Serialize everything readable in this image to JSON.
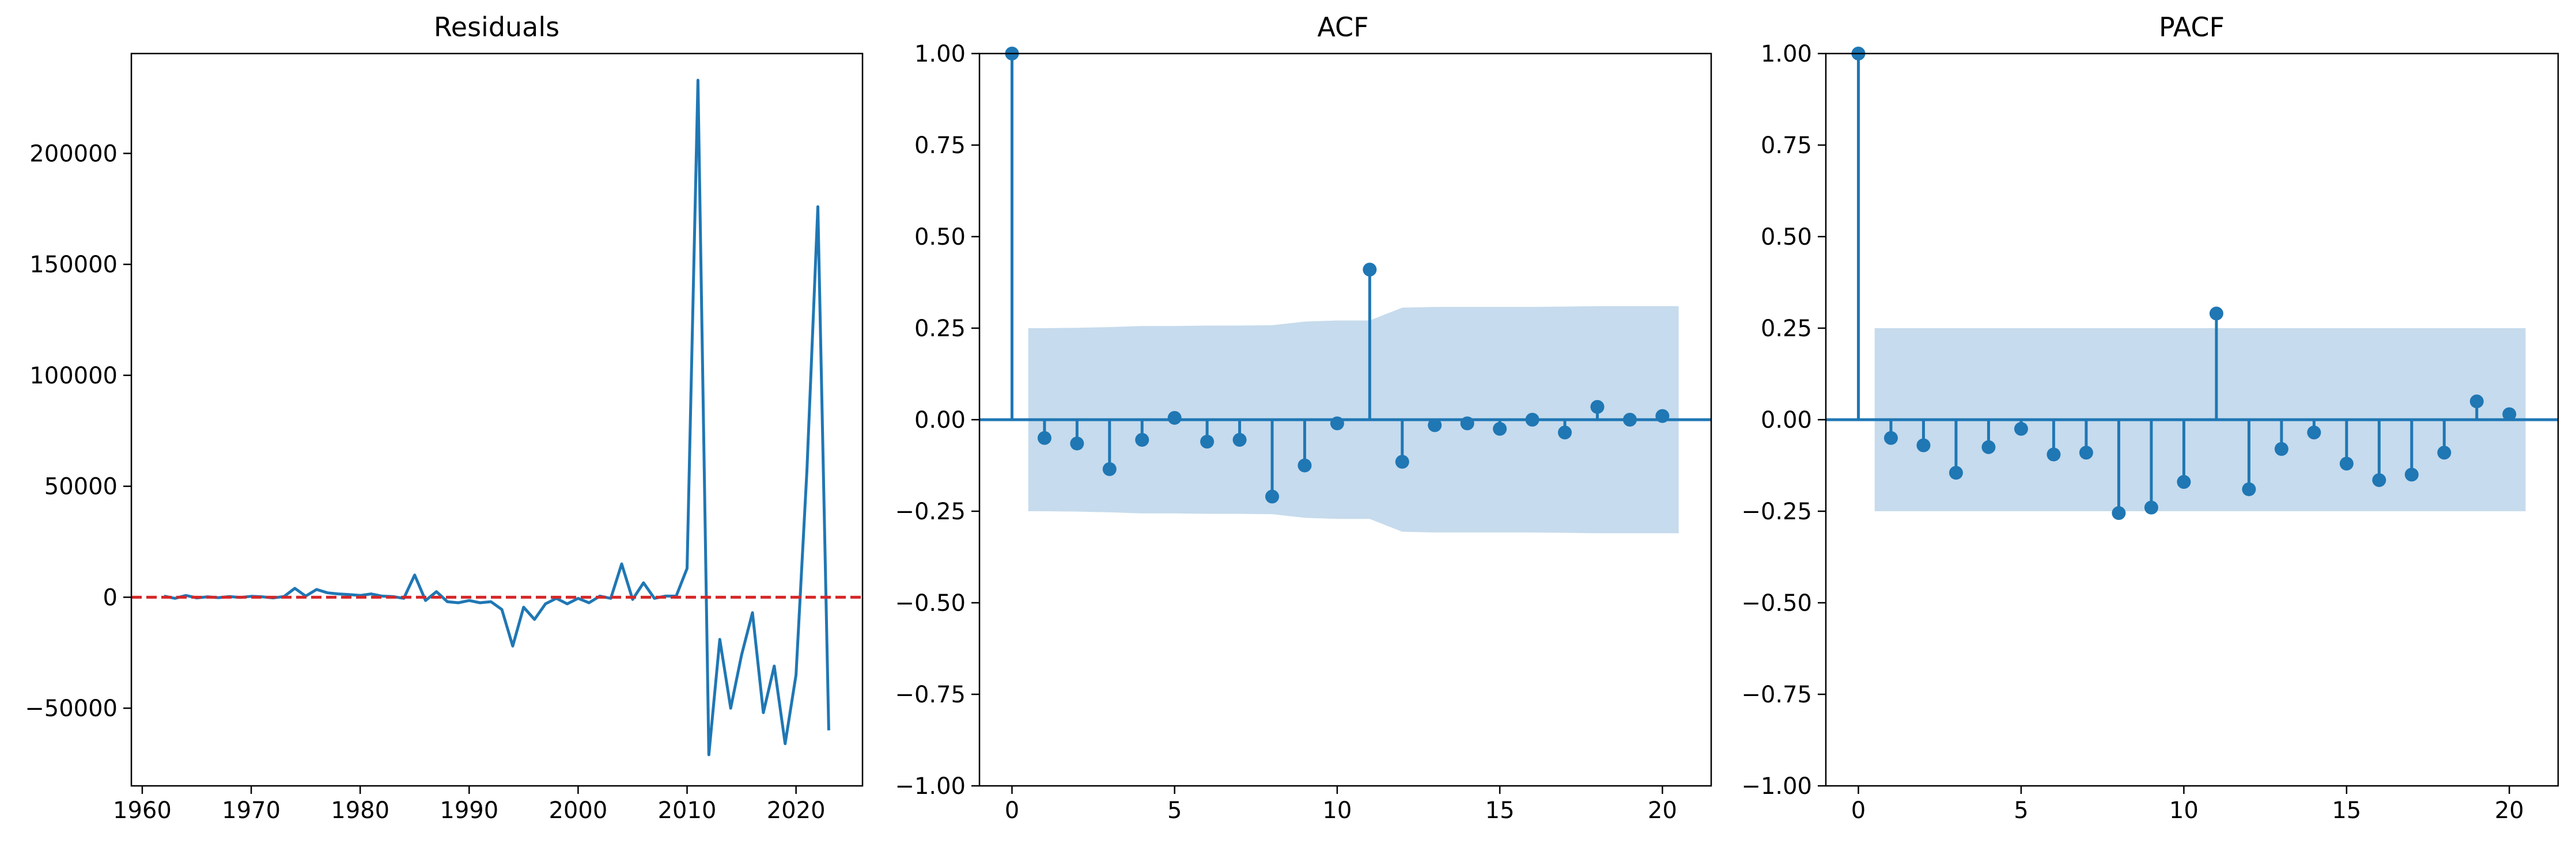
{
  "chart_data": [
    {
      "type": "line",
      "title": "Residuals",
      "xlabel": "",
      "ylabel": "",
      "xlim": [
        1959.0,
        2026.1
      ],
      "ylim": [
        -85000,
        245000
      ],
      "xticks": [
        1960,
        1970,
        1980,
        1990,
        2000,
        2010,
        2020
      ],
      "xtick_labels": [
        "1960",
        "1970",
        "1980",
        "1990",
        "2000",
        "2010",
        "2020"
      ],
      "yticks": [
        -50000,
        0,
        50000,
        100000,
        150000,
        200000
      ],
      "ytick_labels": [
        "−50000",
        "0",
        "50000",
        "100000",
        "150000",
        "200000"
      ],
      "reference_line": {
        "y": 0,
        "style": "dashed",
        "color": "#d62728"
      },
      "line_color": "#1f77b4",
      "x": [
        1962,
        1963,
        1964,
        1965,
        1966,
        1967,
        1968,
        1969,
        1970,
        1971,
        1972,
        1973,
        1974,
        1975,
        1976,
        1977,
        1978,
        1979,
        1980,
        1981,
        1982,
        1983,
        1984,
        1985,
        1986,
        1987,
        1988,
        1989,
        1990,
        1991,
        1992,
        1993,
        1994,
        1995,
        1996,
        1997,
        1998,
        1999,
        2000,
        2001,
        2002,
        2003,
        2004,
        2005,
        2006,
        2007,
        2008,
        2009,
        2010,
        2011,
        2012,
        2013,
        2014,
        2015,
        2016,
        2017,
        2018,
        2019,
        2020,
        2021,
        2022,
        2023
      ],
      "y": [
        500,
        -500,
        800,
        -300,
        200,
        -200,
        300,
        -100,
        400,
        200,
        -300,
        300,
        4000,
        500,
        3500,
        2000,
        1500,
        1200,
        800,
        1500,
        500,
        300,
        -500,
        10000,
        -1500,
        2500,
        -2000,
        -2500,
        -1500,
        -2500,
        -2000,
        -5500,
        -22000,
        -4500,
        -10000,
        -3000,
        -500,
        -3000,
        -500,
        -2500,
        500,
        -500,
        15000,
        -1000,
        6500,
        -500,
        500,
        500,
        13000,
        233000,
        -71000,
        -19000,
        -50000,
        -26000,
        -7000,
        -52000,
        -31000,
        -66000,
        -35000,
        57000,
        176000,
        -60000
      ]
    },
    {
      "type": "stem",
      "title": "ACF",
      "xlabel": "",
      "ylabel": "",
      "xlim": [
        -1.0,
        21.5
      ],
      "ylim": [
        -1.0,
        1.0
      ],
      "xticks": [
        0,
        5,
        10,
        15,
        20
      ],
      "xtick_labels": [
        "0",
        "5",
        "10",
        "15",
        "20"
      ],
      "yticks": [
        -1.0,
        -0.75,
        -0.5,
        -0.25,
        0.0,
        0.25,
        0.5,
        0.75,
        1.0
      ],
      "ytick_labels": [
        "−1.00",
        "−0.75",
        "−0.50",
        "−0.25",
        "0.00",
        "0.25",
        "0.50",
        "0.75",
        "1.00"
      ],
      "color": "#1f77b4",
      "band_color": "#c6dbed",
      "lags": [
        0,
        1,
        2,
        3,
        4,
        5,
        6,
        7,
        8,
        9,
        10,
        11,
        12,
        13,
        14,
        15,
        16,
        17,
        18,
        19,
        20
      ],
      "values": [
        1.0,
        -0.05,
        -0.065,
        -0.135,
        -0.055,
        0.005,
        -0.06,
        -0.055,
        -0.21,
        -0.125,
        -0.01,
        0.41,
        -0.115,
        -0.015,
        -0.01,
        -0.025,
        0.0,
        -0.035,
        0.035,
        0.0,
        0.01
      ],
      "confidence_band": {
        "lags": [
          0.5,
          1,
          2,
          3,
          4,
          5,
          6,
          7,
          8,
          9,
          10,
          11,
          12,
          13,
          14,
          15,
          16,
          17,
          18,
          19,
          20,
          20.5
        ],
        "upper": [
          0.25,
          0.25,
          0.251,
          0.253,
          0.256,
          0.256,
          0.257,
          0.257,
          0.258,
          0.268,
          0.271,
          0.271,
          0.306,
          0.308,
          0.308,
          0.308,
          0.308,
          0.309,
          0.31,
          0.31,
          0.31,
          0.31
        ]
      }
    },
    {
      "type": "stem",
      "title": "PACF",
      "xlabel": "",
      "ylabel": "",
      "xlim": [
        -1.0,
        21.5
      ],
      "ylim": [
        -1.0,
        1.0
      ],
      "xticks": [
        0,
        5,
        10,
        15,
        20
      ],
      "xtick_labels": [
        "0",
        "5",
        "10",
        "15",
        "20"
      ],
      "yticks": [
        -1.0,
        -0.75,
        -0.5,
        -0.25,
        0.0,
        0.25,
        0.5,
        0.75,
        1.0
      ],
      "ytick_labels": [
        "−1.00",
        "−0.75",
        "−0.50",
        "−0.25",
        "0.00",
        "0.25",
        "0.50",
        "0.75",
        "1.00"
      ],
      "color": "#1f77b4",
      "band_color": "#c6dbed",
      "lags": [
        0,
        1,
        2,
        3,
        4,
        5,
        6,
        7,
        8,
        9,
        10,
        11,
        12,
        13,
        14,
        15,
        16,
        17,
        18,
        19,
        20
      ],
      "values": [
        1.0,
        -0.05,
        -0.07,
        -0.145,
        -0.075,
        -0.025,
        -0.095,
        -0.09,
        -0.255,
        -0.24,
        -0.17,
        0.29,
        -0.19,
        -0.08,
        -0.035,
        -0.12,
        -0.165,
        -0.15,
        -0.09,
        0.05,
        0.015
      ],
      "confidence_band": {
        "lags": [
          0.5,
          20.5
        ],
        "upper": [
          0.25,
          0.25
        ]
      }
    }
  ]
}
